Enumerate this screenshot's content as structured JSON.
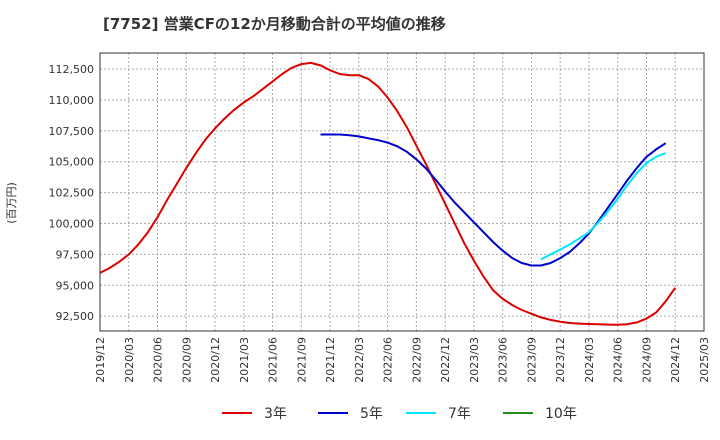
{
  "chart_data": {
    "type": "line",
    "title": "[7752]  営業CFの12か月移動合計の平均値の推移",
    "ylabel": "(百万円)",
    "xlabel": "",
    "ylim": [
      91300,
      113800
    ],
    "y_ticks": [
      92500,
      95000,
      97500,
      100000,
      102500,
      105000,
      107500,
      110000,
      112500
    ],
    "y_tick_labels": [
      "92,500",
      "95,000",
      "97,500",
      "100,000",
      "102,500",
      "105,000",
      "107,500",
      "110,000",
      "112,500"
    ],
    "x_ticks": [
      "2019/12",
      "2020/03",
      "2020/06",
      "2020/09",
      "2020/12",
      "2021/03",
      "2021/06",
      "2021/09",
      "2021/12",
      "2022/03",
      "2022/06",
      "2022/09",
      "2022/12",
      "2023/03",
      "2023/06",
      "2023/09",
      "2023/12",
      "2024/03",
      "2024/06",
      "2024/09",
      "2024/12",
      "2025/03"
    ],
    "grid": true,
    "legend_position": "bottom",
    "series": [
      {
        "name": "3年",
        "color": "#dd0000",
        "points": [
          [
            "2019/12",
            96000
          ],
          [
            "2020/01",
            96400
          ],
          [
            "2020/02",
            96900
          ],
          [
            "2020/03",
            97500
          ],
          [
            "2020/04",
            98300
          ],
          [
            "2020/05",
            99300
          ],
          [
            "2020/06",
            100500
          ],
          [
            "2020/07",
            101900
          ],
          [
            "2020/08",
            103200
          ],
          [
            "2020/09",
            104500
          ],
          [
            "2020/10",
            105700
          ],
          [
            "2020/11",
            106800
          ],
          [
            "2020/12",
            107700
          ],
          [
            "2021/01",
            108500
          ],
          [
            "2021/02",
            109200
          ],
          [
            "2021/03",
            109800
          ],
          [
            "2021/04",
            110300
          ],
          [
            "2021/05",
            110900
          ],
          [
            "2021/06",
            111500
          ],
          [
            "2021/07",
            112100
          ],
          [
            "2021/08",
            112600
          ],
          [
            "2021/09",
            112900
          ],
          [
            "2021/10",
            113000
          ],
          [
            "2021/11",
            112800
          ],
          [
            "2021/12",
            112400
          ],
          [
            "2022/01",
            112100
          ],
          [
            "2022/02",
            112000
          ],
          [
            "2022/03",
            112000
          ],
          [
            "2022/04",
            111700
          ],
          [
            "2022/05",
            111100
          ],
          [
            "2022/06",
            110200
          ],
          [
            "2022/07",
            109100
          ],
          [
            "2022/08",
            107800
          ],
          [
            "2022/09",
            106300
          ],
          [
            "2022/10",
            104800
          ],
          [
            "2022/11",
            103200
          ],
          [
            "2022/12",
            101600
          ],
          [
            "2023/01",
            100000
          ],
          [
            "2023/02",
            98400
          ],
          [
            "2023/03",
            97000
          ],
          [
            "2023/04",
            95700
          ],
          [
            "2023/05",
            94600
          ],
          [
            "2023/06",
            93900
          ],
          [
            "2023/07",
            93400
          ],
          [
            "2023/08",
            93000
          ],
          [
            "2023/09",
            92700
          ],
          [
            "2023/10",
            92400
          ],
          [
            "2023/11",
            92200
          ],
          [
            "2023/12",
            92050
          ],
          [
            "2024/01",
            91950
          ],
          [
            "2024/02",
            91900
          ],
          [
            "2024/03",
            91870
          ],
          [
            "2024/04",
            91850
          ],
          [
            "2024/05",
            91820
          ],
          [
            "2024/06",
            91800
          ],
          [
            "2024/07",
            91850
          ],
          [
            "2024/08",
            92000
          ],
          [
            "2024/09",
            92300
          ],
          [
            "2024/10",
            92800
          ],
          [
            "2024/11",
            93700
          ],
          [
            "2024/12",
            94800
          ]
        ]
      },
      {
        "name": "5年",
        "color": "#0000cc",
        "points": [
          [
            "2021/11",
            107200
          ],
          [
            "2021/12",
            107200
          ],
          [
            "2022/01",
            107200
          ],
          [
            "2022/02",
            107150
          ],
          [
            "2022/03",
            107050
          ],
          [
            "2022/04",
            106900
          ],
          [
            "2022/05",
            106750
          ],
          [
            "2022/06",
            106550
          ],
          [
            "2022/07",
            106250
          ],
          [
            "2022/08",
            105800
          ],
          [
            "2022/09",
            105200
          ],
          [
            "2022/10",
            104450
          ],
          [
            "2022/11",
            103550
          ],
          [
            "2022/12",
            102600
          ],
          [
            "2023/01",
            101700
          ],
          [
            "2023/02",
            100900
          ],
          [
            "2023/03",
            100100
          ],
          [
            "2023/04",
            99300
          ],
          [
            "2023/05",
            98500
          ],
          [
            "2023/06",
            97800
          ],
          [
            "2023/07",
            97200
          ],
          [
            "2023/08",
            96800
          ],
          [
            "2023/09",
            96600
          ],
          [
            "2023/10",
            96600
          ],
          [
            "2023/11",
            96800
          ],
          [
            "2023/12",
            97200
          ],
          [
            "2024/01",
            97700
          ],
          [
            "2024/02",
            98400
          ],
          [
            "2024/03",
            99200
          ],
          [
            "2024/04",
            100200
          ],
          [
            "2024/05",
            101300
          ],
          [
            "2024/06",
            102400
          ],
          [
            "2024/07",
            103500
          ],
          [
            "2024/08",
            104500
          ],
          [
            "2024/09",
            105400
          ],
          [
            "2024/10",
            106000
          ],
          [
            "2024/11",
            106500
          ]
        ]
      },
      {
        "name": "7年",
        "color": "#00e5ff",
        "points": [
          [
            "2023/10",
            97100
          ],
          [
            "2023/11",
            97500
          ],
          [
            "2023/12",
            97900
          ],
          [
            "2024/01",
            98300
          ],
          [
            "2024/02",
            98800
          ],
          [
            "2024/03",
            99300
          ],
          [
            "2024/04",
            100100
          ],
          [
            "2024/05",
            101000
          ],
          [
            "2024/06",
            102000
          ],
          [
            "2024/07",
            103100
          ],
          [
            "2024/08",
            104100
          ],
          [
            "2024/09",
            104900
          ],
          [
            "2024/10",
            105400
          ],
          [
            "2024/11",
            105700
          ]
        ]
      },
      {
        "name": "10年",
        "color": "#228b22",
        "points": []
      }
    ]
  }
}
